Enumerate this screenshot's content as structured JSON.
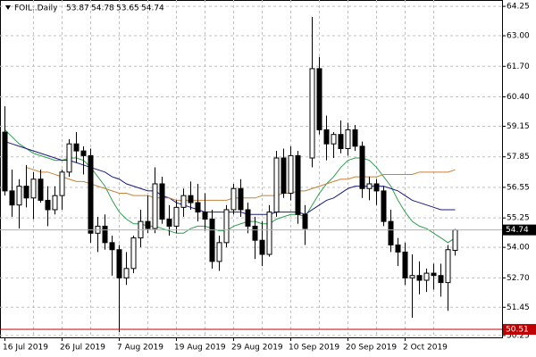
{
  "chart_data": {
    "type": "candlestick",
    "symbol": "FOIL..Daily",
    "categories": [
      "16 Jul 2019",
      null,
      null,
      null,
      null,
      null,
      null,
      null,
      "26 Jul 2019",
      null,
      null,
      null,
      null,
      null,
      null,
      null,
      "7 Aug 2019",
      null,
      null,
      null,
      null,
      null,
      null,
      null,
      "19 Aug 2019",
      null,
      null,
      null,
      null,
      null,
      null,
      null,
      "29 Aug 2019",
      null,
      null,
      null,
      null,
      null,
      null,
      null,
      "10 Sep 2019",
      null,
      null,
      null,
      null,
      null,
      null,
      null,
      "20 Sep 2019",
      null,
      null,
      null,
      null,
      null,
      null,
      null,
      "2 Oct 2019",
      null,
      null,
      null,
      null,
      null,
      null,
      null
    ],
    "open": [
      58.9,
      56.4,
      55.8,
      56.6,
      56.1,
      56.9,
      56.0,
      55.6,
      56.2,
      57.2,
      58.4,
      58.1,
      57.9,
      54.6,
      54.9,
      54.2,
      53.9,
      52.7,
      53.1,
      54.4,
      55.1,
      54.8,
      56.7,
      55.2,
      54.9,
      55.7,
      56.2,
      55.9,
      55.5,
      55.2,
      53.4,
      54.2,
      55.6,
      56.5,
      55.6,
      54.9,
      54.3,
      53.7,
      55.5,
      57.8,
      56.3,
      57.9,
      55.4,
      57.8,
      61.6,
      59.0,
      58.4,
      58.8,
      58.2,
      59.0,
      58.3,
      56.5,
      56.7,
      56.4,
      55.1,
      54.1,
      53.8,
      52.7,
      52.8,
      52.6,
      52.9,
      52.8,
      52.5,
      53.87
    ],
    "high": [
      60.0,
      57.3,
      56.9,
      57.5,
      57.2,
      57.3,
      56.6,
      56.6,
      57.3,
      58.6,
      58.9,
      58.3,
      58.2,
      55.3,
      55.4,
      54.5,
      54.1,
      53.8,
      54.5,
      55.6,
      56.2,
      57.4,
      57.0,
      55.8,
      56.0,
      56.5,
      56.8,
      56.7,
      56.3,
      55.6,
      54.5,
      55.8,
      56.7,
      56.9,
      55.9,
      55.3,
      55.1,
      55.8,
      58.1,
      58.2,
      58.3,
      58.1,
      55.8,
      63.8,
      62.1,
      59.6,
      58.9,
      59.4,
      59.3,
      59.2,
      58.5,
      57.0,
      56.9,
      56.6,
      55.6,
      54.4,
      54.2,
      53.7,
      53.4,
      53.1,
      53.3,
      53.3,
      54.1,
      54.78
    ],
    "low": [
      56.2,
      55.3,
      54.8,
      55.7,
      55.2,
      55.9,
      54.9,
      55.4,
      55.6,
      57.0,
      57.6,
      57.1,
      54.2,
      53.8,
      53.9,
      52.8,
      50.4,
      52.4,
      52.9,
      54.0,
      54.6,
      54.6,
      55.0,
      54.5,
      54.6,
      55.3,
      55.6,
      55.1,
      54.7,
      53.1,
      53.0,
      54.0,
      55.4,
      55.3,
      54.6,
      53.5,
      53.2,
      53.6,
      55.3,
      56.1,
      56.0,
      55.0,
      54.1,
      57.4,
      58.8,
      57.7,
      57.8,
      58.0,
      57.9,
      58.1,
      56.1,
      56.0,
      55.8,
      54.9,
      53.8,
      53.2,
      52.4,
      51.0,
      52.0,
      52.1,
      52.2,
      51.9,
      51.3,
      53.65
    ],
    "close": [
      56.4,
      55.8,
      56.6,
      56.1,
      56.9,
      56.0,
      55.6,
      56.2,
      57.2,
      58.4,
      58.1,
      57.9,
      54.6,
      54.9,
      54.2,
      53.9,
      52.7,
      53.1,
      54.4,
      55.1,
      54.8,
      56.7,
      55.2,
      54.9,
      55.7,
      56.2,
      55.9,
      55.5,
      55.2,
      53.4,
      54.2,
      55.6,
      56.5,
      55.6,
      54.9,
      54.3,
      53.7,
      55.5,
      57.8,
      56.3,
      57.9,
      55.4,
      54.8,
      61.6,
      59.0,
      58.4,
      58.8,
      58.2,
      59.0,
      58.3,
      56.5,
      56.7,
      56.4,
      55.1,
      54.1,
      53.8,
      52.7,
      52.8,
      52.6,
      52.9,
      52.8,
      52.5,
      53.9,
      54.74
    ],
    "bull_color": "#ffffff",
    "bear_color": "#000000",
    "lines": [
      {
        "color": "#2e9e4e",
        "values": [
          59.0,
          58.7,
          58.4,
          58.2,
          58.0,
          57.9,
          57.8,
          57.7,
          57.7,
          57.8,
          57.8,
          57.7,
          57.4,
          57.0,
          56.6,
          56.0,
          55.5,
          55.2,
          55.0,
          55.0,
          54.9,
          54.9,
          54.8,
          54.7,
          54.6,
          54.6,
          54.8,
          54.9,
          54.9,
          54.8,
          54.7,
          54.7,
          54.9,
          55.0,
          55.1,
          55.1,
          55.0,
          55.0,
          55.2,
          55.3,
          55.4,
          55.4,
          55.3,
          55.8,
          56.3,
          56.7,
          57.0,
          57.4,
          57.7,
          57.8,
          57.8,
          57.7,
          57.4,
          57.0,
          56.6,
          56.0,
          55.5,
          55.1,
          54.9,
          54.8,
          54.6,
          54.4,
          54.2,
          54.4
        ]
      },
      {
        "color": "#1a1a80",
        "values": [
          58.5,
          58.4,
          58.3,
          58.2,
          58.1,
          58.0,
          57.9,
          57.8,
          57.7,
          57.7,
          57.6,
          57.5,
          57.4,
          57.3,
          57.2,
          57.0,
          56.9,
          56.7,
          56.6,
          56.5,
          56.4,
          56.4,
          56.2,
          56.1,
          55.9,
          55.8,
          55.7,
          55.6,
          55.5,
          55.5,
          55.5,
          55.5,
          55.5,
          55.5,
          55.4,
          55.4,
          55.4,
          55.4,
          55.5,
          55.5,
          55.5,
          55.5,
          55.4,
          55.6,
          55.8,
          56.0,
          56.1,
          56.3,
          56.5,
          56.6,
          56.6,
          56.6,
          56.6,
          56.6,
          56.5,
          56.4,
          56.2,
          56.0,
          55.9,
          55.8,
          55.7,
          55.6,
          55.6,
          55.6
        ]
      },
      {
        "color": "#c8803a",
        "values": [
          null,
          null,
          null,
          57.4,
          57.3,
          57.2,
          57.2,
          57.1,
          57.0,
          56.9,
          56.8,
          56.8,
          56.7,
          56.6,
          56.5,
          56.4,
          56.3,
          56.3,
          56.2,
          56.2,
          56.2,
          56.1,
          56.1,
          56.1,
          56.0,
          56.0,
          56.0,
          56.0,
          56.0,
          56.0,
          56.0,
          56.0,
          56.1,
          56.1,
          56.1,
          56.1,
          56.2,
          56.2,
          56.2,
          56.3,
          56.3,
          56.4,
          56.4,
          56.5,
          56.6,
          56.7,
          56.8,
          56.9,
          56.9,
          57.0,
          57.0,
          57.0,
          57.0,
          57.1,
          57.1,
          57.1,
          57.1,
          57.1,
          57.2,
          57.2,
          57.2,
          57.2,
          57.2,
          57.3
        ]
      }
    ],
    "price_lines": [
      {
        "value": 54.74,
        "color": "#b0b0b0",
        "box": "#000000"
      },
      {
        "value": 50.51,
        "color": "#c00000",
        "box": "#c00000"
      }
    ],
    "ylim": [
      50.17,
      64.52
    ],
    "yticks": [
      64.25,
      {
        "value": 63,
        "label": "63.00"
      },
      {
        "value": 61.7,
        "label": "61.70"
      },
      {
        "value": 60.4,
        "label": "60.40"
      },
      59.15,
      57.85,
      56.55,
      55.25,
      {
        "value": 54,
        "label": "54.00"
      },
      {
        "value": 52.7,
        "label": "52.70"
      },
      51.45,
      50.25
    ],
    "grid": true
  }
}
